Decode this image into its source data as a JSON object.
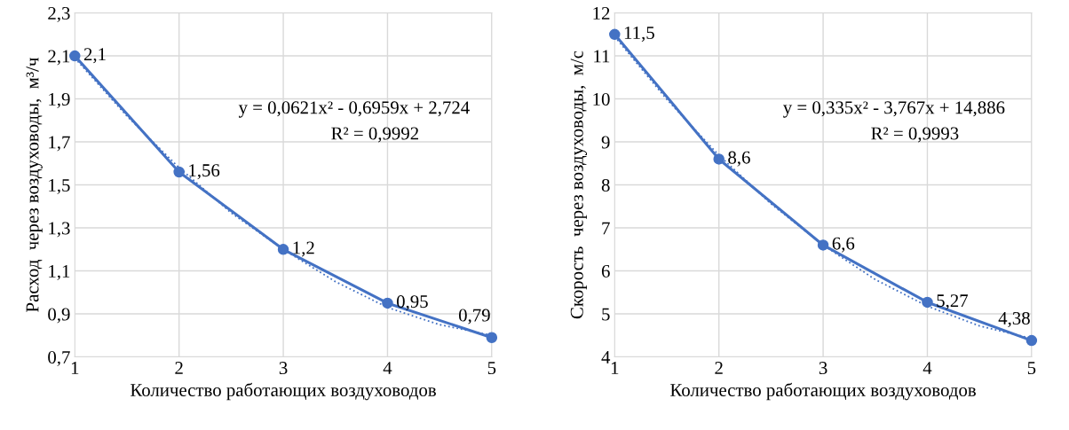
{
  "chart_data": [
    {
      "type": "line",
      "xlabel": "Количество работающих воздуховодов",
      "ylabel": "Расход  через воздуховоды,  м³/ч",
      "xlim": [
        1,
        5
      ],
      "xticks": [
        1,
        2,
        3,
        4,
        5
      ],
      "ylim": [
        0.7,
        2.3
      ],
      "yticks": [
        {
          "value": 0.7,
          "label": "0,7"
        },
        {
          "value": 0.9,
          "label": "0,9"
        },
        {
          "value": 1.1,
          "label": "1,1"
        },
        {
          "value": 1.3,
          "label": "1,3"
        },
        {
          "value": 1.5,
          "label": "1,5"
        },
        {
          "value": 1.7,
          "label": "1,7"
        },
        {
          "value": 1.9,
          "label": "1,9"
        },
        {
          "value": 2.1,
          "label": "2,1"
        },
        {
          "value": 2.3,
          "label": "2,3"
        }
      ],
      "grid": true,
      "annotations": [
        "y = 0,0621x² - 0,6959x + 2,724",
        "R² = 0,9992"
      ],
      "series": [
        {
          "color": "#4472c4",
          "marker": "circle",
          "line_style": "solid",
          "x": [
            1,
            2,
            3,
            4,
            5
          ],
          "values": [
            2.1,
            1.56,
            1.2,
            0.95,
            0.79
          ],
          "value_labels": [
            "2,1",
            "1,56",
            "1,2",
            "0,95",
            "0,79"
          ]
        },
        {
          "color": "#4472c4",
          "marker": "none",
          "line_style": "dotted",
          "x": [
            1,
            1.5,
            2,
            2.5,
            3,
            3.5,
            4,
            4.5,
            5
          ],
          "values": [
            2.09,
            1.82,
            1.58,
            1.37,
            1.2,
            1.05,
            0.93,
            0.85,
            0.8
          ]
        }
      ]
    },
    {
      "type": "line",
      "xlabel": "Количество работающих воздуховодов",
      "ylabel": "Скорость  через воздуховоды,  м/с",
      "xlim": [
        1,
        5
      ],
      "xticks": [
        1,
        2,
        3,
        4,
        5
      ],
      "ylim": [
        4,
        12
      ],
      "yticks": [
        4,
        5,
        6,
        7,
        8,
        9,
        10,
        11,
        12
      ],
      "grid": true,
      "annotations": [
        "y = 0,335x² - 3,767x + 14,886",
        "R² = 0,9993"
      ],
      "series": [
        {
          "color": "#4472c4",
          "marker": "circle",
          "line_style": "solid",
          "x": [
            1,
            2,
            3,
            4,
            5
          ],
          "values": [
            11.5,
            8.6,
            6.6,
            5.27,
            4.38
          ],
          "value_labels": [
            "11,5",
            "8,6",
            "6,6",
            "5,27",
            "4,38"
          ]
        },
        {
          "color": "#4472c4",
          "marker": "none",
          "line_style": "dotted",
          "x": [
            1,
            1.5,
            2,
            2.5,
            3,
            3.5,
            4,
            4.5,
            5
          ],
          "values": [
            11.45,
            9.99,
            8.69,
            7.56,
            6.6,
            5.8,
            5.18,
            4.72,
            4.43
          ]
        }
      ]
    }
  ]
}
